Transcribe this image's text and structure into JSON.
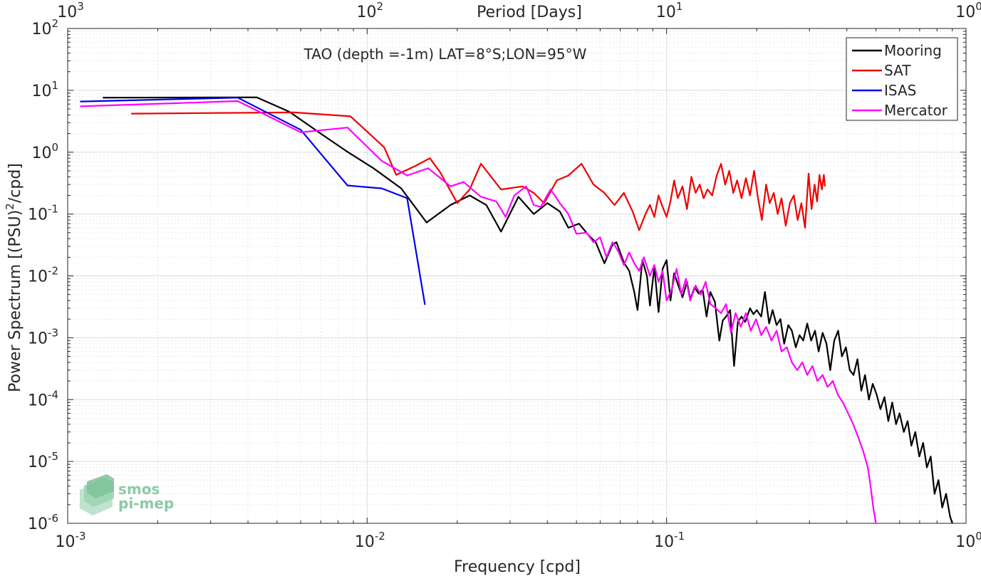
{
  "chart_data": {
    "type": "line",
    "title": "TAO (depth =-1m) LAT=8°S;LON=95°W",
    "xlabel": "Frequency [cpd]",
    "ylabel": "Power Spectrum [(PSU)",
    "ylabel_sup": "2",
    "ylabel_tail": "/cpd]",
    "top_axis_label": "Period [Days]",
    "x_scale": "log",
    "y_scale": "log",
    "xlim": [
      0.001,
      1
    ],
    "ylim": [
      1e-06,
      100
    ],
    "grid": true,
    "legend_position": "top-right",
    "x_ticks": [
      {
        "value": 0.001,
        "base": "10",
        "exp": "-3"
      },
      {
        "value": 0.01,
        "base": "10",
        "exp": "-2"
      },
      {
        "value": 0.1,
        "base": "10",
        "exp": "-1"
      },
      {
        "value": 1,
        "base": "10",
        "exp": "0"
      }
    ],
    "top_ticks": [
      {
        "value": 0.001,
        "base": "10",
        "exp": "3"
      },
      {
        "value": 0.01,
        "base": "10",
        "exp": "2"
      },
      {
        "value": 0.1,
        "base": "10",
        "exp": "1"
      },
      {
        "value": 1,
        "base": "10",
        "exp": "0"
      }
    ],
    "y_ticks": [
      {
        "value": 100,
        "base": "10",
        "exp": "2"
      },
      {
        "value": 10,
        "base": "10",
        "exp": "1"
      },
      {
        "value": 1,
        "base": "10",
        "exp": "0"
      },
      {
        "value": 0.1,
        "base": "10",
        "exp": "-1"
      },
      {
        "value": 0.01,
        "base": "10",
        "exp": "-2"
      },
      {
        "value": 0.001,
        "base": "10",
        "exp": "-3"
      },
      {
        "value": 0.0001,
        "base": "10",
        "exp": "-4"
      },
      {
        "value": 1e-05,
        "base": "10",
        "exp": "-5"
      },
      {
        "value": 1e-06,
        "base": "10",
        "exp": "-6"
      }
    ],
    "series": [
      {
        "name": "Mooring",
        "color": "#000000",
        "points": [
          [
            0.00131,
            7.6
          ],
          [
            0.00428,
            7.7
          ],
          [
            0.0055,
            4.5
          ],
          [
            0.007,
            2.0
          ],
          [
            0.0085,
            1.05
          ],
          [
            0.0105,
            0.55
          ],
          [
            0.013,
            0.26
          ],
          [
            0.0158,
            0.073
          ],
          [
            0.019,
            0.14
          ],
          [
            0.022,
            0.2
          ],
          [
            0.025,
            0.14
          ],
          [
            0.028,
            0.052
          ],
          [
            0.032,
            0.19
          ],
          [
            0.036,
            0.1
          ],
          [
            0.04,
            0.15
          ],
          [
            0.044,
            0.11
          ],
          [
            0.047,
            0.06
          ],
          [
            0.051,
            0.07
          ],
          [
            0.055,
            0.045
          ],
          [
            0.058,
            0.035
          ],
          [
            0.062,
            0.016
          ],
          [
            0.066,
            0.032
          ],
          [
            0.068,
            0.035
          ],
          [
            0.072,
            0.0165
          ],
          [
            0.075,
            0.012
          ],
          [
            0.078,
            0.0055
          ],
          [
            0.08,
            0.0028
          ],
          [
            0.083,
            0.018
          ],
          [
            0.086,
            0.01
          ],
          [
            0.088,
            0.0033
          ],
          [
            0.091,
            0.014
          ],
          [
            0.094,
            0.0026
          ],
          [
            0.097,
            0.013
          ],
          [
            0.1,
            0.018
          ],
          [
            0.103,
            0.004
          ],
          [
            0.106,
            0.011
          ],
          [
            0.11,
            0.0065
          ],
          [
            0.113,
            0.0045
          ],
          [
            0.117,
            0.008
          ],
          [
            0.12,
            0.0042
          ],
          [
            0.124,
            0.0065
          ],
          [
            0.128,
            0.0052
          ],
          [
            0.132,
            0.006
          ],
          [
            0.136,
            0.0022
          ],
          [
            0.14,
            0.0055
          ],
          [
            0.145,
            0.0038
          ],
          [
            0.15,
            0.0009
          ],
          [
            0.154,
            0.0019
          ],
          [
            0.158,
            0.0022
          ],
          [
            0.163,
            0.0028
          ],
          [
            0.168,
            0.00035
          ],
          [
            0.173,
            0.0018
          ],
          [
            0.178,
            0.0022
          ],
          [
            0.183,
            0.0018
          ],
          [
            0.19,
            0.003
          ],
          [
            0.195,
            0.0024
          ],
          [
            0.2,
            0.0028
          ],
          [
            0.207,
            0.0022
          ],
          [
            0.213,
            0.0055
          ],
          [
            0.22,
            0.0017
          ],
          [
            0.226,
            0.0028
          ],
          [
            0.233,
            0.0016
          ],
          [
            0.24,
            0.002
          ],
          [
            0.247,
            0.0008
          ],
          [
            0.255,
            0.0016
          ],
          [
            0.262,
            0.0013
          ],
          [
            0.27,
            0.0007
          ],
          [
            0.278,
            0.0011
          ],
          [
            0.286,
            0.0009
          ],
          [
            0.295,
            0.0017
          ],
          [
            0.304,
            0.0009
          ],
          [
            0.313,
            0.0013
          ],
          [
            0.322,
            0.0006
          ],
          [
            0.332,
            0.0012
          ],
          [
            0.342,
            0.0008
          ],
          [
            0.352,
            0.0003
          ],
          [
            0.363,
            0.0009
          ],
          [
            0.374,
            0.0013
          ],
          [
            0.385,
            0.0005
          ],
          [
            0.397,
            0.0007
          ],
          [
            0.409,
            0.0003
          ],
          [
            0.421,
            0.00025
          ],
          [
            0.434,
            0.00045
          ],
          [
            0.447,
            0.00014
          ],
          [
            0.46,
            0.00025
          ],
          [
            0.474,
            0.0001
          ],
          [
            0.488,
            0.00018
          ],
          [
            0.503,
            0.00012
          ],
          [
            0.518,
            7e-05
          ],
          [
            0.534,
            0.00011
          ],
          [
            0.55,
            4.5e-05
          ],
          [
            0.567,
            9e-05
          ],
          [
            0.584,
            4e-05
          ],
          [
            0.6,
            6e-05
          ],
          [
            0.62,
            3e-05
          ],
          [
            0.638,
            4.5e-05
          ],
          [
            0.657,
            1.8e-05
          ],
          [
            0.677,
            3e-05
          ],
          [
            0.698,
            1.2e-05
          ],
          [
            0.719,
            2e-05
          ],
          [
            0.74,
            8e-06
          ],
          [
            0.762,
            1.2e-05
          ],
          [
            0.785,
            3e-06
          ],
          [
            0.809,
            5e-06
          ],
          [
            0.833,
            1.8e-06
          ],
          [
            0.858,
            3e-06
          ],
          [
            0.884,
            1.3e-06
          ],
          [
            0.9,
            1e-06
          ]
        ]
      },
      {
        "name": "SAT",
        "color": "#ee0000",
        "points": [
          [
            0.00163,
            4.2
          ],
          [
            0.0057,
            4.4
          ],
          [
            0.0088,
            3.8
          ],
          [
            0.0114,
            1.2
          ],
          [
            0.0125,
            0.43
          ],
          [
            0.0145,
            0.6
          ],
          [
            0.0162,
            0.8
          ],
          [
            0.0175,
            0.48
          ],
          [
            0.02,
            0.15
          ],
          [
            0.022,
            0.25
          ],
          [
            0.024,
            0.65
          ],
          [
            0.028,
            0.25
          ],
          [
            0.033,
            0.28
          ],
          [
            0.036,
            0.22
          ],
          [
            0.039,
            0.15
          ],
          [
            0.043,
            0.35
          ],
          [
            0.047,
            0.42
          ],
          [
            0.052,
            0.65
          ],
          [
            0.057,
            0.3
          ],
          [
            0.062,
            0.22
          ],
          [
            0.067,
            0.14
          ],
          [
            0.072,
            0.22
          ],
          [
            0.077,
            0.11
          ],
          [
            0.081,
            0.055
          ],
          [
            0.085,
            0.1
          ],
          [
            0.088,
            0.14
          ],
          [
            0.091,
            0.09
          ],
          [
            0.094,
            0.2
          ],
          [
            0.097,
            0.13
          ],
          [
            0.1,
            0.09
          ],
          [
            0.103,
            0.16
          ],
          [
            0.106,
            0.35
          ],
          [
            0.109,
            0.18
          ],
          [
            0.113,
            0.28
          ],
          [
            0.117,
            0.12
          ],
          [
            0.121,
            0.4
          ],
          [
            0.125,
            0.22
          ],
          [
            0.129,
            0.3
          ],
          [
            0.133,
            0.18
          ],
          [
            0.137,
            0.25
          ],
          [
            0.142,
            0.2
          ],
          [
            0.147,
            0.42
          ],
          [
            0.152,
            0.65
          ],
          [
            0.157,
            0.3
          ],
          [
            0.162,
            0.5
          ],
          [
            0.167,
            0.22
          ],
          [
            0.172,
            0.35
          ],
          [
            0.178,
            0.18
          ],
          [
            0.184,
            0.38
          ],
          [
            0.19,
            0.2
          ],
          [
            0.196,
            0.5
          ],
          [
            0.202,
            0.18
          ],
          [
            0.208,
            0.08
          ],
          [
            0.215,
            0.3
          ],
          [
            0.221,
            0.15
          ],
          [
            0.228,
            0.22
          ],
          [
            0.235,
            0.1
          ],
          [
            0.242,
            0.18
          ],
          [
            0.25,
            0.065
          ],
          [
            0.258,
            0.15
          ],
          [
            0.266,
            0.2
          ],
          [
            0.274,
            0.08
          ],
          [
            0.282,
            0.15
          ],
          [
            0.29,
            0.06
          ],
          [
            0.298,
            0.45
          ],
          [
            0.305,
            0.12
          ],
          [
            0.312,
            0.3
          ],
          [
            0.318,
            0.16
          ],
          [
            0.324,
            0.43
          ],
          [
            0.33,
            0.25
          ],
          [
            0.335,
            0.43
          ],
          [
            0.338,
            0.28
          ]
        ]
      },
      {
        "name": "ISAS",
        "color": "#0000ee",
        "points": [
          [
            0.0011,
            6.6
          ],
          [
            0.0037,
            7.6
          ],
          [
            0.006,
            2.3
          ],
          [
            0.0086,
            0.29
          ],
          [
            0.0112,
            0.26
          ],
          [
            0.0136,
            0.18
          ],
          [
            0.0156,
            0.0034
          ]
        ]
      },
      {
        "name": "Mercator",
        "color": "#ff00ff",
        "points": [
          [
            0.0011,
            5.5
          ],
          [
            0.0037,
            6.7
          ],
          [
            0.006,
            2.1
          ],
          [
            0.0086,
            2.5
          ],
          [
            0.0112,
            0.72
          ],
          [
            0.0136,
            0.42
          ],
          [
            0.016,
            0.55
          ],
          [
            0.019,
            0.28
          ],
          [
            0.021,
            0.33
          ],
          [
            0.024,
            0.19
          ],
          [
            0.027,
            0.16
          ],
          [
            0.029,
            0.09
          ],
          [
            0.031,
            0.2
          ],
          [
            0.034,
            0.28
          ],
          [
            0.036,
            0.14
          ],
          [
            0.038,
            0.13
          ],
          [
            0.041,
            0.25
          ],
          [
            0.044,
            0.15
          ],
          [
            0.047,
            0.1
          ],
          [
            0.05,
            0.048
          ],
          [
            0.054,
            0.05
          ],
          [
            0.057,
            0.035
          ],
          [
            0.06,
            0.042
          ],
          [
            0.063,
            0.02
          ],
          [
            0.066,
            0.035
          ],
          [
            0.069,
            0.025
          ],
          [
            0.072,
            0.015
          ],
          [
            0.075,
            0.024
          ],
          [
            0.078,
            0.016
          ],
          [
            0.081,
            0.012
          ],
          [
            0.084,
            0.02
          ],
          [
            0.088,
            0.01
          ],
          [
            0.091,
            0.015
          ],
          [
            0.094,
            0.008
          ],
          [
            0.097,
            0.012
          ],
          [
            0.1,
            0.004
          ],
          [
            0.104,
            0.006
          ],
          [
            0.108,
            0.013
          ],
          [
            0.112,
            0.005
          ],
          [
            0.116,
            0.009
          ],
          [
            0.12,
            0.004
          ],
          [
            0.125,
            0.007
          ],
          [
            0.13,
            0.005
          ],
          [
            0.135,
            0.008
          ],
          [
            0.14,
            0.0035
          ],
          [
            0.146,
            0.003
          ],
          [
            0.152,
            0.0025
          ],
          [
            0.158,
            0.0035
          ],
          [
            0.164,
            0.0012
          ],
          [
            0.17,
            0.0025
          ],
          [
            0.177,
            0.0015
          ],
          [
            0.184,
            0.0025
          ],
          [
            0.191,
            0.0013
          ],
          [
            0.199,
            0.002
          ],
          [
            0.207,
            0.0011
          ],
          [
            0.215,
            0.0015
          ],
          [
            0.224,
            0.0009
          ],
          [
            0.233,
            0.0013
          ],
          [
            0.242,
            0.0006
          ],
          [
            0.252,
            0.0007
          ],
          [
            0.262,
            0.0004
          ],
          [
            0.273,
            0.0003
          ],
          [
            0.284,
            0.0004
          ],
          [
            0.295,
            0.00025
          ],
          [
            0.307,
            0.00035
          ],
          [
            0.319,
            0.0002
          ],
          [
            0.332,
            0.00025
          ],
          [
            0.345,
            0.00016
          ],
          [
            0.359,
            0.0002
          ],
          [
            0.373,
            0.00012
          ],
          [
            0.388,
            9e-05
          ],
          [
            0.404,
            6e-05
          ],
          [
            0.42,
            4e-05
          ],
          [
            0.436,
            2.5e-05
          ],
          [
            0.453,
            1.5e-05
          ],
          [
            0.47,
            8e-06
          ],
          [
            0.48,
            4e-06
          ],
          [
            0.49,
            1.8e-06
          ],
          [
            0.5,
            1e-06
          ]
        ]
      }
    ]
  },
  "watermark": {
    "line1": "smos",
    "line2": "pi-mep",
    "color": "#8ccaa5"
  }
}
